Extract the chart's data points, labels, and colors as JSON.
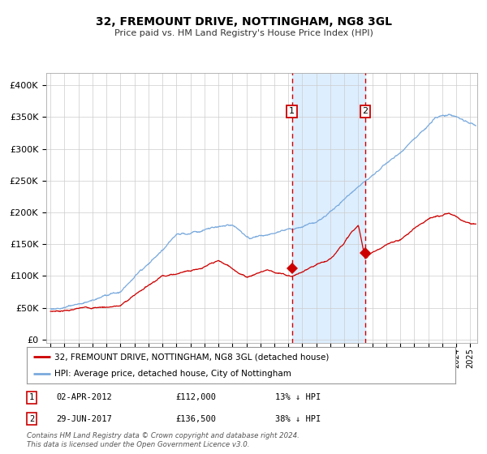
{
  "title": "32, FREMOUNT DRIVE, NOTTINGHAM, NG8 3GL",
  "subtitle": "Price paid vs. HM Land Registry's House Price Index (HPI)",
  "background_color": "#ffffff",
  "plot_bg_color": "#ffffff",
  "grid_color": "#cccccc",
  "hpi_line_color": "#7aaadd",
  "price_line_color": "#cc0000",
  "shade_color": "#ddeeff",
  "transaction1": {
    "date_num": 2012.25,
    "price": 112000,
    "label": "1"
  },
  "transaction2": {
    "date_num": 2017.49,
    "price": 136500,
    "label": "2"
  },
  "yticks": [
    0,
    50000,
    100000,
    150000,
    200000,
    250000,
    300000,
    350000,
    400000
  ],
  "ylim": [
    -5000,
    420000
  ],
  "xlim": [
    1994.7,
    2025.5
  ],
  "footnote": "Contains HM Land Registry data © Crown copyright and database right 2024.\nThis data is licensed under the Open Government Licence v3.0.",
  "legend_line1": "32, FREMOUNT DRIVE, NOTTINGHAM, NG8 3GL (detached house)",
  "legend_line2": "HPI: Average price, detached house, City of Nottingham",
  "table_row1": [
    "1",
    "02-APR-2012",
    "£112,000",
    "13% ↓ HPI"
  ],
  "table_row2": [
    "2",
    "29-JUN-2017",
    "£136,500",
    "38% ↓ HPI"
  ]
}
